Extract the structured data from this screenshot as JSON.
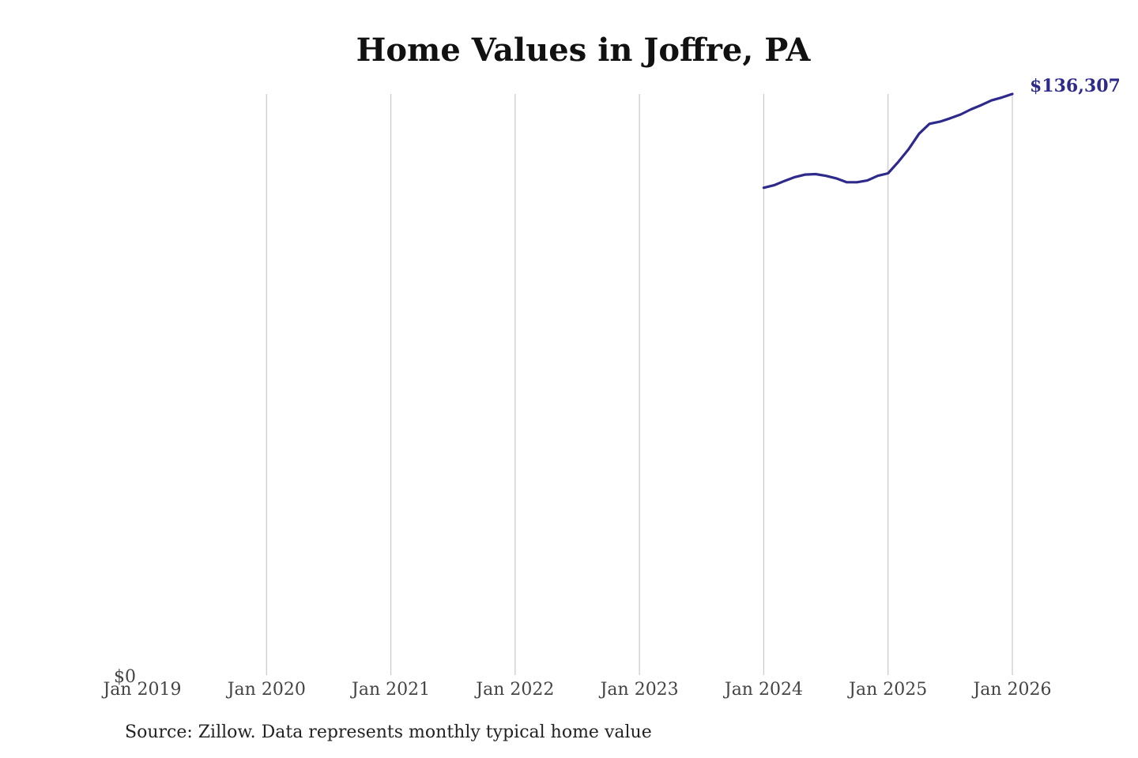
{
  "chart_data": {
    "type": "line",
    "title": "Home Values in Joffre, PA",
    "source": "Source: Zillow. Data represents monthly typical home value",
    "x_ticks": [
      "Jan 2019",
      "Jan 2020",
      "Jan 2021",
      "Jan 2022",
      "Jan 2023",
      "Jan 2024",
      "Jan 2025",
      "Jan 2026"
    ],
    "xlim": [
      "2019-01",
      "2026-01"
    ],
    "y_tick_label": "$0",
    "ylim": [
      0,
      136307
    ],
    "grid": "vertical",
    "line_color": "#2e2a8c",
    "end_label": "$136,307",
    "series": [
      {
        "x": [
          "2024-01",
          "2024-02",
          "2024-03",
          "2024-04",
          "2024-05",
          "2024-06",
          "2024-07",
          "2024-08",
          "2024-09",
          "2024-10",
          "2024-11",
          "2024-12",
          "2025-01",
          "2025-02",
          "2025-03",
          "2025-04",
          "2025-05",
          "2025-06",
          "2025-07",
          "2025-08",
          "2025-09",
          "2025-10",
          "2025-11",
          "2025-12",
          "2026-01"
        ],
        "values": [
          114300,
          114900,
          115900,
          116800,
          117400,
          117500,
          117100,
          116500,
          115600,
          115600,
          116000,
          117100,
          117700,
          120400,
          123400,
          127000,
          129300,
          129800,
          130600,
          131500,
          132700,
          133700,
          134800,
          135500,
          136307
        ]
      }
    ]
  }
}
